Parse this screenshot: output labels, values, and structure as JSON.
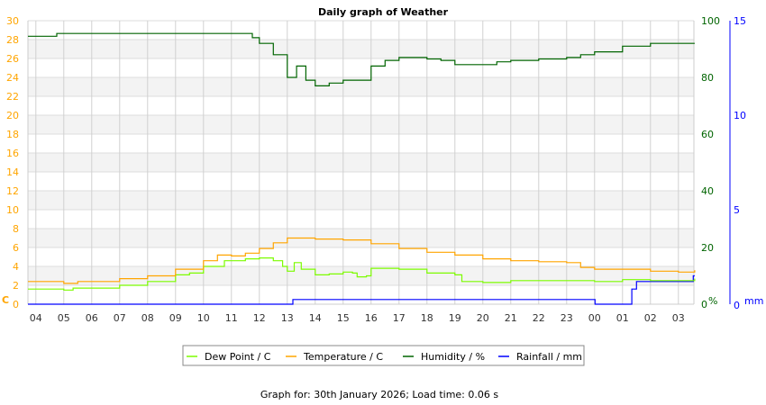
{
  "chart_data": {
    "type": "line",
    "title": "Daily graph of Weather",
    "x_tick_labels": [
      "04",
      "05",
      "06",
      "07",
      "08",
      "09",
      "10",
      "11",
      "12",
      "13",
      "14",
      "15",
      "16",
      "17",
      "18",
      "19",
      "20",
      "21",
      "22",
      "23",
      "00",
      "01",
      "02",
      "03"
    ],
    "x_range": [
      "03:43",
      "03:35"
    ],
    "axes": {
      "left": {
        "unit": "C",
        "ylim": [
          0,
          30
        ],
        "ticks": [
          0,
          2,
          4,
          6,
          8,
          10,
          12,
          14,
          16,
          18,
          20,
          22,
          24,
          26,
          28,
          30
        ],
        "color": "#ffa500"
      },
      "right_humidity": {
        "unit": "%",
        "ylim": [
          0,
          100
        ],
        "ticks": [
          0,
          20,
          40,
          60,
          80,
          100
        ],
        "color": "#006400"
      },
      "right_rain": {
        "unit": "mm",
        "ylim": [
          0,
          15
        ],
        "ticks": [
          0,
          5,
          10,
          15
        ],
        "color": "#0000ff"
      }
    },
    "grid": true,
    "legend_placement": "bottom",
    "series": [
      {
        "name": "Dew Point / C",
        "axis": "left",
        "color": "#7cfc00",
        "points": [
          [
            "03:43",
            1.6
          ],
          [
            "04:00",
            1.6
          ],
          [
            "04:40",
            1.6
          ],
          [
            "05:00",
            1.5
          ],
          [
            "05:20",
            1.7
          ],
          [
            "06:00",
            1.7
          ],
          [
            "06:40",
            1.7
          ],
          [
            "07:00",
            2.0
          ],
          [
            "08:00",
            2.4
          ],
          [
            "09:00",
            3.1
          ],
          [
            "09:30",
            3.3
          ],
          [
            "10:00",
            4.0
          ],
          [
            "10:45",
            4.6
          ],
          [
            "11:00",
            4.6
          ],
          [
            "11:30",
            4.8
          ],
          [
            "12:00",
            4.9
          ],
          [
            "12:30",
            4.6
          ],
          [
            "12:50",
            4.0
          ],
          [
            "13:00",
            3.5
          ],
          [
            "13:15",
            4.4
          ],
          [
            "13:30",
            3.7
          ],
          [
            "14:00",
            3.1
          ],
          [
            "14:30",
            3.2
          ],
          [
            "15:00",
            3.4
          ],
          [
            "15:20",
            3.3
          ],
          [
            "15:30",
            2.9
          ],
          [
            "15:50",
            3.0
          ],
          [
            "16:00",
            3.8
          ],
          [
            "17:00",
            3.7
          ],
          [
            "18:00",
            3.3
          ],
          [
            "19:00",
            3.1
          ],
          [
            "19:15",
            2.4
          ],
          [
            "20:00",
            2.3
          ],
          [
            "21:00",
            2.5
          ],
          [
            "22:00",
            2.5
          ],
          [
            "23:00",
            2.5
          ],
          [
            "00:00",
            2.4
          ],
          [
            "01:00",
            2.6
          ],
          [
            "02:00",
            2.5
          ],
          [
            "03:00",
            2.5
          ],
          [
            "03:35",
            2.7
          ]
        ]
      },
      {
        "name": "Temperature / C",
        "axis": "left",
        "color": "#ffa500",
        "points": [
          [
            "03:43",
            2.4
          ],
          [
            "04:00",
            2.4
          ],
          [
            "04:40",
            2.4
          ],
          [
            "05:00",
            2.2
          ],
          [
            "05:30",
            2.4
          ],
          [
            "06:00",
            2.4
          ],
          [
            "06:40",
            2.4
          ],
          [
            "07:00",
            2.7
          ],
          [
            "08:00",
            3.0
          ],
          [
            "09:00",
            3.7
          ],
          [
            "10:00",
            4.6
          ],
          [
            "10:30",
            5.2
          ],
          [
            "11:00",
            5.1
          ],
          [
            "11:30",
            5.4
          ],
          [
            "12:00",
            5.9
          ],
          [
            "12:30",
            6.5
          ],
          [
            "13:00",
            7.0
          ],
          [
            "14:00",
            6.9
          ],
          [
            "15:00",
            6.8
          ],
          [
            "16:00",
            6.4
          ],
          [
            "17:00",
            5.9
          ],
          [
            "18:00",
            5.5
          ],
          [
            "19:00",
            5.2
          ],
          [
            "20:00",
            4.8
          ],
          [
            "21:00",
            4.6
          ],
          [
            "22:00",
            4.5
          ],
          [
            "23:00",
            4.4
          ],
          [
            "23:30",
            3.9
          ],
          [
            "00:00",
            3.7
          ],
          [
            "01:00",
            3.7
          ],
          [
            "02:00",
            3.5
          ],
          [
            "03:00",
            3.4
          ],
          [
            "03:35",
            3.6
          ]
        ]
      },
      {
        "name": "Humidity / %",
        "axis": "right_humidity",
        "color": "#006400",
        "points": [
          [
            "03:43",
            94.5
          ],
          [
            "04:40",
            94.5
          ],
          [
            "04:45",
            95.5
          ],
          [
            "05:00",
            95.5
          ],
          [
            "11:30",
            95.5
          ],
          [
            "11:45",
            94
          ],
          [
            "12:00",
            92
          ],
          [
            "12:30",
            88
          ],
          [
            "13:00",
            80
          ],
          [
            "13:20",
            84
          ],
          [
            "13:40",
            79
          ],
          [
            "14:00",
            77
          ],
          [
            "14:30",
            78
          ],
          [
            "15:00",
            79
          ],
          [
            "15:30",
            79
          ],
          [
            "15:50",
            79
          ],
          [
            "16:00",
            84
          ],
          [
            "16:30",
            86
          ],
          [
            "17:00",
            87
          ],
          [
            "18:00",
            86.5
          ],
          [
            "18:30",
            86
          ],
          [
            "19:00",
            84.5
          ],
          [
            "20:00",
            84.5
          ],
          [
            "20:30",
            85.5
          ],
          [
            "21:00",
            86
          ],
          [
            "22:00",
            86.5
          ],
          [
            "23:00",
            87
          ],
          [
            "23:30",
            88
          ],
          [
            "00:00",
            89
          ],
          [
            "01:00",
            91
          ],
          [
            "02:00",
            92
          ],
          [
            "03:00",
            92
          ],
          [
            "03:35",
            92
          ]
        ]
      },
      {
        "name": "Rainfall / mm",
        "axis": "right_rain",
        "color": "#0000ff",
        "points": [
          [
            "03:43",
            0
          ],
          [
            "13:10",
            0
          ],
          [
            "13:12",
            0.25
          ],
          [
            "23:59",
            0.25
          ],
          [
            "00:01",
            0
          ],
          [
            "01:00",
            0
          ],
          [
            "01:20",
            0.8
          ],
          [
            "01:30",
            1.2
          ],
          [
            "03:30",
            1.2
          ],
          [
            "03:32",
            1.5
          ],
          [
            "03:35",
            1.5
          ]
        ]
      }
    ]
  },
  "footer": "Graph for: 30th January 2026; Load time: 0.06 s"
}
